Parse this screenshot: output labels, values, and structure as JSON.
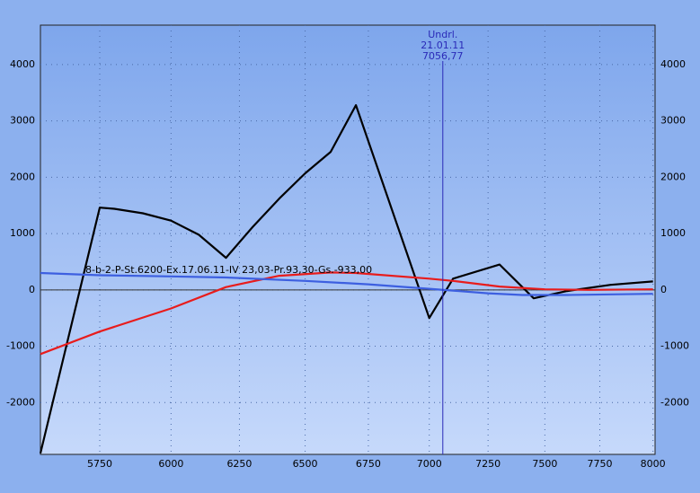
{
  "chart_data": {
    "type": "line",
    "annotation": "8-b-2-P-St.6200-Ex.17.06.11-IV 23,03-Pr.93,30-Gs.-933,00",
    "marker_line": {
      "value": {
        "value": 7056.77,
        "label": "7056,77"
      },
      "title": "Undrl.",
      "date": "21.01.11",
      "color": "#2a2ab8"
    },
    "x_log": true,
    "xlim": [
      5550,
      8010
    ],
    "xticks": [
      5750,
      6000,
      6250,
      6500,
      6750,
      7000,
      7250,
      7500,
      7750,
      8000
    ],
    "ylim": [
      -2920,
      4700
    ],
    "yticks": [
      -2000,
      -1000,
      0,
      1000,
      2000,
      3000,
      4000
    ],
    "grid": true,
    "series": [
      {
        "color": "#000000",
        "x": [
          5550,
          5750,
          5800,
          5900,
          6000,
          6100,
          6200,
          6300,
          6400,
          6500,
          6600,
          6700,
          7000,
          7100,
          7300,
          7450,
          7600,
          7800,
          8000
        ],
        "values": [
          -2900,
          1460,
          1440,
          1360,
          1230,
          980,
          570,
          1120,
          1620,
          2070,
          2450,
          3280,
          -500,
          200,
          450,
          -150,
          -20,
          90,
          150
        ]
      },
      {
        "color": "#e81c1c",
        "x": [
          5550,
          5750,
          6000,
          6200,
          6400,
          6600,
          6700,
          7000,
          7100,
          7300,
          7500,
          7700,
          8000
        ],
        "values": [
          -1140,
          -740,
          -330,
          50,
          250,
          310,
          300,
          200,
          160,
          60,
          10,
          0,
          10
        ]
      },
      {
        "color": "#3d5fe0",
        "x": [
          5550,
          5750,
          6000,
          6200,
          6500,
          6750,
          7000,
          7250,
          7400,
          7600,
          8000
        ],
        "values": [
          300,
          260,
          240,
          220,
          160,
          100,
          20,
          -60,
          -90,
          -90,
          -70
        ]
      }
    ]
  }
}
